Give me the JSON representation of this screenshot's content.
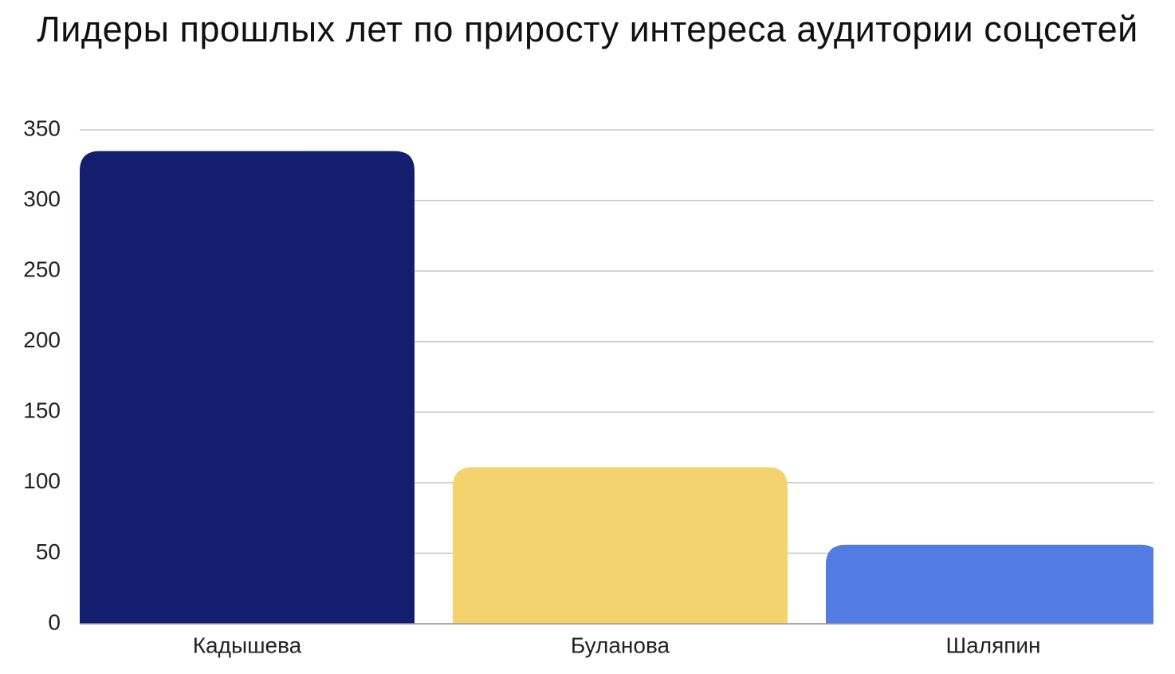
{
  "chart_data": {
    "type": "bar",
    "title": "Лидеры прошлых лет по приросту интереса аудитории соцсетей",
    "categories": [
      "Кадышева",
      "Буланова",
      "Шаляпин"
    ],
    "values": [
      335,
      111,
      56
    ],
    "colors": [
      "#131f6e",
      "#f3d36d",
      "#527ce2"
    ],
    "ylim": [
      0,
      350
    ],
    "yticks": [
      0,
      50,
      100,
      150,
      200,
      250,
      300,
      350
    ],
    "grid": true
  }
}
